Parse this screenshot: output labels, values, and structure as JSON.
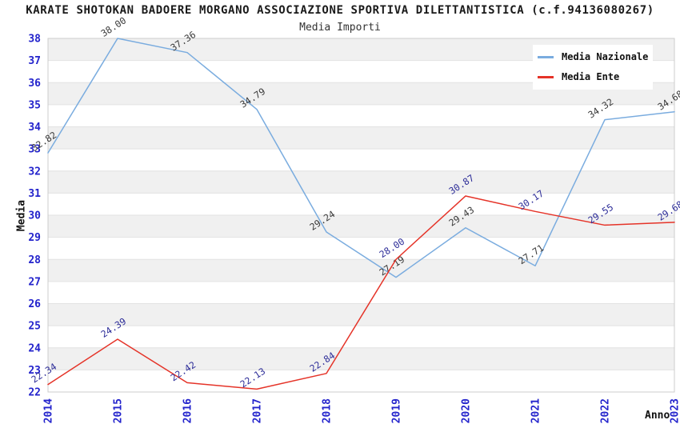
{
  "header": {
    "title": "KARATE SHOTOKAN BADOERE MORGANO ASSOCIAZIONE SPORTIVA DILETTANTISTICA (c.f.94136080267)",
    "subtitle": "Media Importi"
  },
  "legend": {
    "position": "top-right",
    "items": [
      {
        "label": "Media Nazionale",
        "color": "#7aacdf"
      },
      {
        "label": "Media Ente",
        "color": "#e53328"
      }
    ]
  },
  "chart_data": {
    "type": "line",
    "title": "Media Importi",
    "xlabel": "Anno",
    "ylabel": "Media",
    "x": [
      2014,
      2015,
      2016,
      2017,
      2018,
      2019,
      2020,
      2021,
      2022,
      2023
    ],
    "series": [
      {
        "name": "Media Nazionale",
        "color": "#7aacdf",
        "label_color": "#3a3a3a",
        "values": [
          32.82,
          38.0,
          37.36,
          34.79,
          29.24,
          27.19,
          29.43,
          27.71,
          34.32,
          34.68
        ]
      },
      {
        "name": "Media Ente",
        "color": "#e53328",
        "label_color": "#2e2e99",
        "values": [
          22.34,
          24.39,
          22.42,
          22.13,
          22.84,
          28.0,
          30.87,
          30.17,
          29.55,
          29.68
        ]
      }
    ],
    "ylim": [
      22,
      38
    ],
    "y_tick_step": 1,
    "grid": true,
    "legend_position": "top-right",
    "tick_color": "#2323cc",
    "grid_color": "#e2e2e2",
    "stripe_colors": [
      "#ffffff",
      "#f0f0f0"
    ],
    "plot_border_color": "#cccccc"
  }
}
